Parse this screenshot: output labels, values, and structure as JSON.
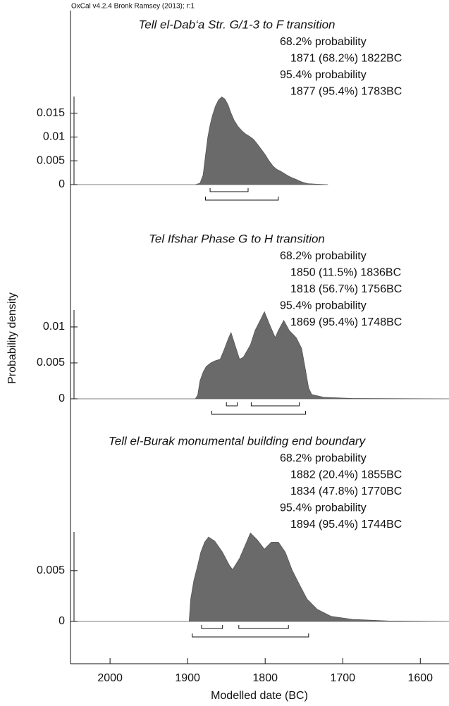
{
  "chart_data": {
    "type": "area",
    "caption": "OxCal v4.2.4 Bronk Ramsey (2013); r:1",
    "xlabel": "Modelled date (BC)",
    "ylabel": "Probability density",
    "xlim": [
      2051,
      1563
    ],
    "xticks": [
      2000,
      1900,
      1800,
      1700,
      1600
    ],
    "color": "#6a6a6a",
    "panels": [
      {
        "title": "Tell el-Dab‘a Str. G/1-3 to F transition",
        "ylim": [
          0,
          0.0185
        ],
        "yticks": [
          0,
          0.005,
          0.01,
          0.015
        ],
        "x": [
          2045,
          1890,
          1884,
          1880,
          1877,
          1874,
          1871,
          1868,
          1864,
          1860,
          1856,
          1852,
          1848,
          1844,
          1840,
          1835,
          1830,
          1825,
          1820,
          1815,
          1810,
          1805,
          1800,
          1795,
          1790,
          1785,
          1780,
          1775,
          1770,
          1765,
          1760,
          1755,
          1750,
          1745,
          1735,
          1719
        ],
        "values": [
          0,
          0,
          0.0003,
          0.002,
          0.006,
          0.0099,
          0.0125,
          0.0145,
          0.0165,
          0.0178,
          0.0184,
          0.018,
          0.0168,
          0.015,
          0.0135,
          0.0122,
          0.0113,
          0.0106,
          0.0101,
          0.0095,
          0.0085,
          0.0074,
          0.0063,
          0.005,
          0.0039,
          0.0032,
          0.0028,
          0.0023,
          0.0018,
          0.0014,
          0.0011,
          0.0007,
          0.0004,
          0.0002,
          0.0001,
          0
        ],
        "hpd": [
          {
            "label": "68.2% probability",
            "ranges": [
              {
                "from": 1871,
                "to": 1822,
                "label": "1871 (68.2%) 1822BC"
              }
            ]
          },
          {
            "label": "95.4% probability",
            "ranges": [
              {
                "from": 1877,
                "to": 1783,
                "label": "1877 (95.4%) 1783BC"
              }
            ]
          }
        ]
      },
      {
        "title": "Tel Ifshar Phase G to H transition",
        "ylim": [
          0,
          0.01235
        ],
        "yticks": [
          0,
          0.005,
          0.01
        ],
        "x": [
          2045,
          1890,
          1887,
          1884,
          1880,
          1876,
          1870,
          1864,
          1858,
          1853,
          1847,
          1844,
          1839,
          1833,
          1828,
          1819,
          1813,
          1805,
          1801,
          1795,
          1787,
          1783,
          1776,
          1769,
          1760,
          1753,
          1748,
          1744,
          1740,
          1724,
          1687,
          1563
        ],
        "values": [
          0,
          0,
          0.0005,
          0.0025,
          0.0037,
          0.0045,
          0.005,
          0.0053,
          0.0055,
          0.0068,
          0.0085,
          0.0092,
          0.0075,
          0.0055,
          0.0058,
          0.0075,
          0.0095,
          0.0112,
          0.0121,
          0.0105,
          0.0085,
          0.0095,
          0.0109,
          0.0095,
          0.0085,
          0.007,
          0.004,
          0.0015,
          0.0006,
          0.0002,
          5e-05,
          0
        ],
        "hpd": [
          {
            "label": "68.2% probability",
            "ranges": [
              {
                "from": 1850,
                "to": 1836,
                "label": "1850 (11.5%) 1836BC"
              },
              {
                "from": 1818,
                "to": 1756,
                "label": "1818 (56.7%) 1756BC"
              }
            ]
          },
          {
            "label": "95.4% probability",
            "ranges": [
              {
                "from": 1869,
                "to": 1748,
                "label": "1869 (95.4%) 1748BC"
              }
            ]
          }
        ]
      },
      {
        "title": "Tell el-Burak monumental building end boundary",
        "ylim": [
          0,
          0.0088
        ],
        "yticks": [
          0,
          0.005
        ],
        "x": [
          2045,
          1898,
          1896,
          1892,
          1887,
          1883,
          1878,
          1873,
          1865,
          1855,
          1846,
          1842,
          1833,
          1824,
          1819,
          1810,
          1801,
          1792,
          1783,
          1774,
          1765,
          1755,
          1746,
          1733,
          1715,
          1687,
          1642,
          1563
        ],
        "values": [
          0,
          0,
          0.0022,
          0.004,
          0.0055,
          0.0068,
          0.0078,
          0.0083,
          0.0079,
          0.0068,
          0.0055,
          0.0051,
          0.0062,
          0.0078,
          0.0087,
          0.008,
          0.0071,
          0.0078,
          0.0078,
          0.0068,
          0.005,
          0.0035,
          0.0022,
          0.0012,
          0.0005,
          0.0002,
          5e-05,
          0
        ],
        "hpd": [
          {
            "label": "68.2% probability",
            "ranges": [
              {
                "from": 1882,
                "to": 1855,
                "label": "1882 (20.4%) 1855BC"
              },
              {
                "from": 1834,
                "to": 1770,
                "label": "1834 (47.8%) 1770BC"
              }
            ]
          },
          {
            "label": "95.4% probability",
            "ranges": [
              {
                "from": 1894,
                "to": 1744,
                "label": "1894 (95.4%) 1744BC"
              }
            ]
          }
        ]
      }
    ]
  }
}
